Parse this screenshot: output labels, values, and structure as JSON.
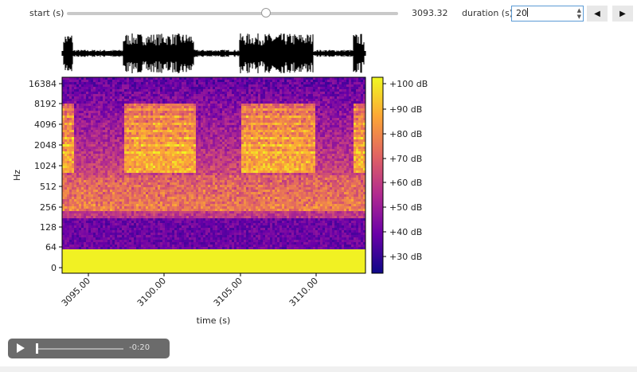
{
  "controls": {
    "start_label": "start (s)",
    "start_value": "3093.32",
    "slider_fraction": 0.6,
    "duration_label": "duration (s):",
    "duration_value": "20",
    "prev_icon": "triangle-left-icon",
    "next_icon": "triangle-right-icon"
  },
  "chart_data": {
    "type": "heatmap",
    "title": "",
    "xlabel": "time (s)",
    "ylabel": "Hz",
    "x_ticks": [
      "3095.00",
      "3100.00",
      "3105.00",
      "3110.00"
    ],
    "y_ticks": [
      "16384",
      "8192",
      "4096",
      "2048",
      "1024",
      "512",
      "256",
      "128",
      "64",
      "0"
    ],
    "colorbar_ticks": [
      "+100 dB",
      "+90 dB",
      "+80 dB",
      "+70 dB",
      "+60 dB",
      "+50 dB",
      "+40 dB",
      "+30 dB"
    ],
    "colormap": [
      "#0d0887",
      "#6a00a8",
      "#b12a90",
      "#e16462",
      "#fca636",
      "#f0f921"
    ]
  },
  "audio": {
    "time_remaining": "-0:20",
    "play_icon": "play-icon"
  }
}
